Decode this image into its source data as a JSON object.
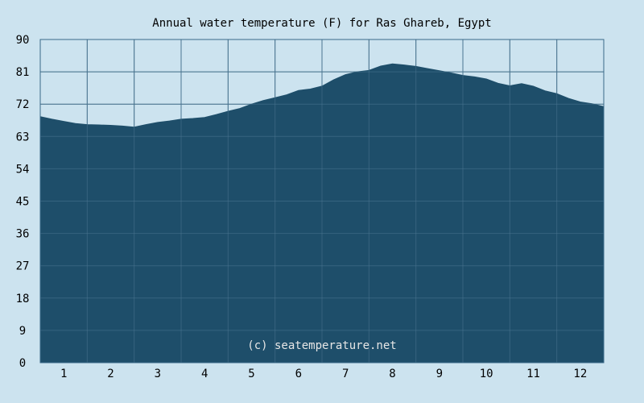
{
  "chart_data": {
    "type": "area",
    "title": "Annual water temperature (F) for Ras Ghareb, Egypt",
    "xlabel": "",
    "ylabel": "",
    "categories": [
      "1",
      "2",
      "3",
      "4",
      "5",
      "6",
      "7",
      "8",
      "9",
      "10",
      "11",
      "12"
    ],
    "xlim": [
      0.5,
      12.5
    ],
    "ylim": [
      0,
      90
    ],
    "yticks": [
      0,
      9,
      18,
      27,
      36,
      45,
      54,
      63,
      72,
      81,
      90
    ],
    "grid": true,
    "legend": "none",
    "watermark": "(c) seatemperature.net",
    "series": [
      {
        "x": [
          0.5,
          0.75,
          1,
          1.25,
          1.5,
          1.75,
          2,
          2.25,
          2.5,
          2.75,
          3,
          3.25,
          3.5,
          3.75,
          4,
          4.25,
          4.5,
          4.75,
          5,
          5.25,
          5.5,
          5.75,
          6,
          6.25,
          6.5,
          6.75,
          7,
          7.25,
          7.5,
          7.75,
          8,
          8.25,
          8.5,
          8.75,
          9,
          9.25,
          9.5,
          9.75,
          10,
          10.25,
          10.5,
          10.75,
          11,
          11.25,
          11.5,
          11.75,
          12,
          12.25,
          12.5
        ],
        "values": [
          68.5,
          67.8,
          67.2,
          66.6,
          66.3,
          66.2,
          66.1,
          65.9,
          65.6,
          66.3,
          66.9,
          67.3,
          67.8,
          68.0,
          68.3,
          69.1,
          70.0,
          70.8,
          72.0,
          73.0,
          73.8,
          74.6,
          75.8,
          76.2,
          77.0,
          78.8,
          80.2,
          81.0,
          81.4,
          82.6,
          83.2,
          82.9,
          82.5,
          81.9,
          81.3,
          80.7,
          80.0,
          79.6,
          79.0,
          77.8,
          77.1,
          77.7,
          77.0,
          75.7,
          74.9,
          73.6,
          72.6,
          72.1,
          71.3
        ]
      }
    ],
    "colors": {
      "background": "#cce3ef",
      "plot_fill": "#1e4e6a",
      "grid": "#4a7490",
      "axis": "#3a6a88",
      "text": "#000000",
      "watermark": "#e6e6e6"
    }
  }
}
